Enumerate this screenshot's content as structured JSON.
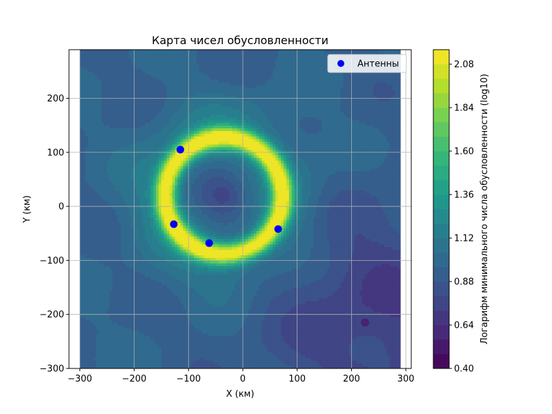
{
  "chart_data": {
    "type": "heatmap",
    "title": "Карта чисел обусловленности",
    "xlabel": "X (км)",
    "ylabel": "Y (км)",
    "xlim": [
      -320,
      310
    ],
    "ylim": [
      -300,
      290
    ],
    "xticks": [
      -300,
      -200,
      -100,
      0,
      100,
      200,
      300
    ],
    "yticks": [
      -300,
      -200,
      -100,
      0,
      100,
      200
    ],
    "grid": true,
    "data_extent": {
      "x": [
        -300,
        290
      ],
      "y": [
        -300,
        290
      ]
    },
    "field": {
      "ring_center": [
        -35,
        20
      ],
      "ring_radius": 108,
      "ring_peak": 2.1,
      "center_min": 0.74,
      "background": 0.95,
      "lowland_center": [
        250,
        -200
      ],
      "lowland_min": 0.72,
      "local_min_point": [
        225,
        -215
      ]
    },
    "series": [
      {
        "name": "Антенны",
        "kind": "scatter",
        "color": "#0000ff",
        "points": [
          [
            -115,
            105
          ],
          [
            -127,
            -33
          ],
          [
            -62,
            -68
          ],
          [
            65,
            -42
          ]
        ]
      }
    ],
    "legend": {
      "position": "top-right",
      "entries": [
        "Антенны"
      ]
    },
    "colorbar": {
      "label": "Логарифм минимального числа обусловленности (log10)",
      "range": [
        0.4,
        2.16
      ],
      "ticks": [
        "0.40",
        "0.64",
        "0.88",
        "1.12",
        "1.36",
        "1.60",
        "1.84",
        "2.08"
      ],
      "colormap": "viridis",
      "levels": 22
    }
  }
}
